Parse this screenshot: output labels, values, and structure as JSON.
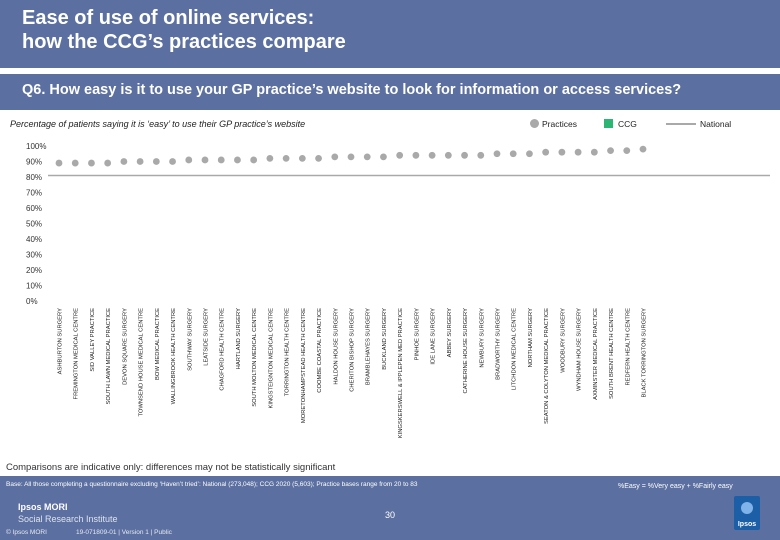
{
  "header": {
    "title": "Ease of use of online services:\nhow the CCG’s practices compare"
  },
  "question": "Q6. How easy is it to use your GP practice’s website to look for information or access services?",
  "subtitle": "Percentage of patients saying it is ‘easy’ to use their GP practice’s website",
  "legend": {
    "practices": "Practices",
    "ccg": "CCG",
    "national": "National",
    "colors": {
      "practices": "#a9a9a9",
      "ccg": "#2bb673",
      "national": "#a9a9a9"
    }
  },
  "chart_data": {
    "type": "scatter",
    "categories": [
      "ASHBURTON SURGERY",
      "FREMINGTON MEDICAL CENTRE",
      "SID VALLEY PRACTICE",
      "SOUTH LAWN MEDICAL PRACTICE",
      "DEVON SQUARE SURGERY",
      "TOWNSEND HOUSE MEDICAL CENTRE",
      "BOW MEDICAL PRACTICE",
      "WALLINGBROOK HEALTH CENTRE",
      "SOUTHWAY SURGERY",
      "LEATSIDE SURGERY",
      "CHAGFORD HEALTH CENTRE",
      "HARTLAND SURGERY",
      "SOUTH MOLTON MEDICAL CENTRE",
      "KINGSTEIGNTON MEDICAL CENTRE",
      "TORRINGTON HEALTH CENTRE",
      "MORETONHAMPSTEAD HEALTH CENTRE",
      "COOMBE COASTAL PRACTICE",
      "HALDON HOUSE SURGERY",
      "CHERITON BISHOP SURGERY",
      "BRAMBLEHAYES SURGERY",
      "BUCKLAND SURGERY",
      "KINGSKERSWELL & IPPLEPEN MED PRACTICE",
      "PINHOE SURGERY",
      "IDE LANE SURGERY",
      "ABBEY SURGERY",
      "CATHERINE HOUSE SURGERY",
      "NEWBURY SURGERY",
      "BRADWORTHY SURGERY",
      "LITCHDON MEDICAL CENTRE",
      "NORTHAM SURGERY",
      "SEATON & COLYTON MEDICAL PRACTICE",
      "WOODBURY SURGERY",
      "WYNDHAM HOUSE SURGERY",
      "AXMINSTER MEDICAL PRACTICE",
      "SOUTH BRENT HEALTH CENTRE",
      "REDFERN HEALTH CENTRE",
      "BLACK TORRINGTON SURGERY"
    ],
    "values": [
      89,
      89,
      89,
      89,
      90,
      90,
      90,
      90,
      91,
      91,
      91,
      91,
      91,
      92,
      92,
      92,
      92,
      93,
      93,
      93,
      93,
      94,
      94,
      94,
      94,
      94,
      94,
      95,
      95,
      95,
      96,
      96,
      96,
      96,
      97,
      97,
      98
    ],
    "ccg_value": null,
    "national_value": 81,
    "ylim": [
      0,
      100
    ],
    "yticks": [
      "0%",
      "10%",
      "20%",
      "30%",
      "40%",
      "50%",
      "60%",
      "70%",
      "80%",
      "90%",
      "100%"
    ],
    "grid": false
  },
  "note": "Comparisons are indicative only: differences may not be statistically significant",
  "footer": {
    "base": "Base: All those completing a questionnaire excluding ‘Haven’t tried’: National (273,048); CCG 2020 (5,603); Practice bases range from 20 to 83",
    "easy_definition": "%Easy = %Very easy + %Fairly easy",
    "brand": "Ipsos MORI",
    "brand_sub": "Social Research Institute",
    "copyright": "© Ipsos MORI",
    "job": "19-071809-01 | Version 1 | Public",
    "page": "30",
    "logo": "Ipsos"
  }
}
